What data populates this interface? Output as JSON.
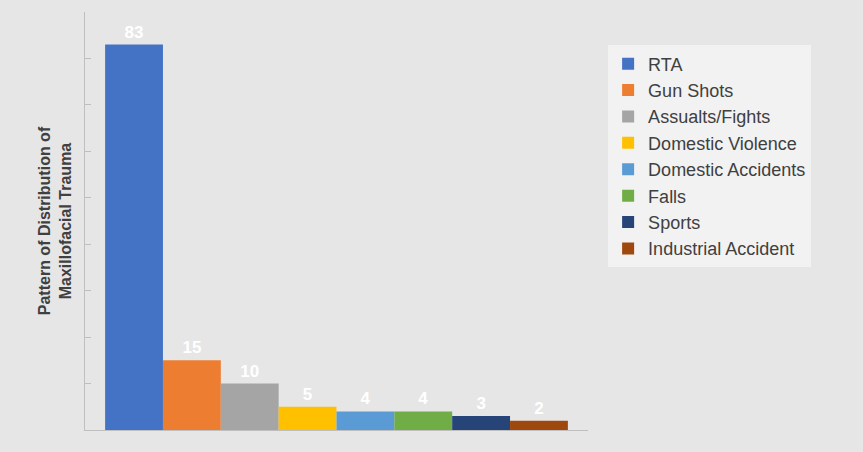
{
  "chart_data": {
    "type": "bar",
    "y_label": "Pattern of Distribution of Maxillofacial Trauma",
    "categories": [
      null
    ],
    "series": [
      {
        "name": "RTA",
        "color": "#4472c4",
        "values": [
          83
        ]
      },
      {
        "name": "Gun Shots",
        "color": "#ed7d31",
        "values": [
          15
        ]
      },
      {
        "name": "Assualts/Fights",
        "color": "#a5a5a5",
        "values": [
          10
        ]
      },
      {
        "name": "Domestic Violence",
        "color": "#ffc000",
        "values": [
          5
        ]
      },
      {
        "name": "Domestic Accidents",
        "color": "#5b9bd5",
        "values": [
          4
        ]
      },
      {
        "name": "Falls",
        "color": "#70ad47",
        "values": [
          4
        ]
      },
      {
        "name": "Sports",
        "color": "#264478",
        "values": [
          3
        ]
      },
      {
        "name": "Industrial Accident",
        "color": "#9e480e",
        "values": [
          2
        ]
      }
    ],
    "ylim": [
      0,
      90
    ],
    "yticks": [
      0,
      10,
      20,
      30,
      40,
      50,
      60,
      70,
      80,
      90
    ],
    "grid": false,
    "legend": "right",
    "data_labels": true,
    "tick_labels": false
  }
}
